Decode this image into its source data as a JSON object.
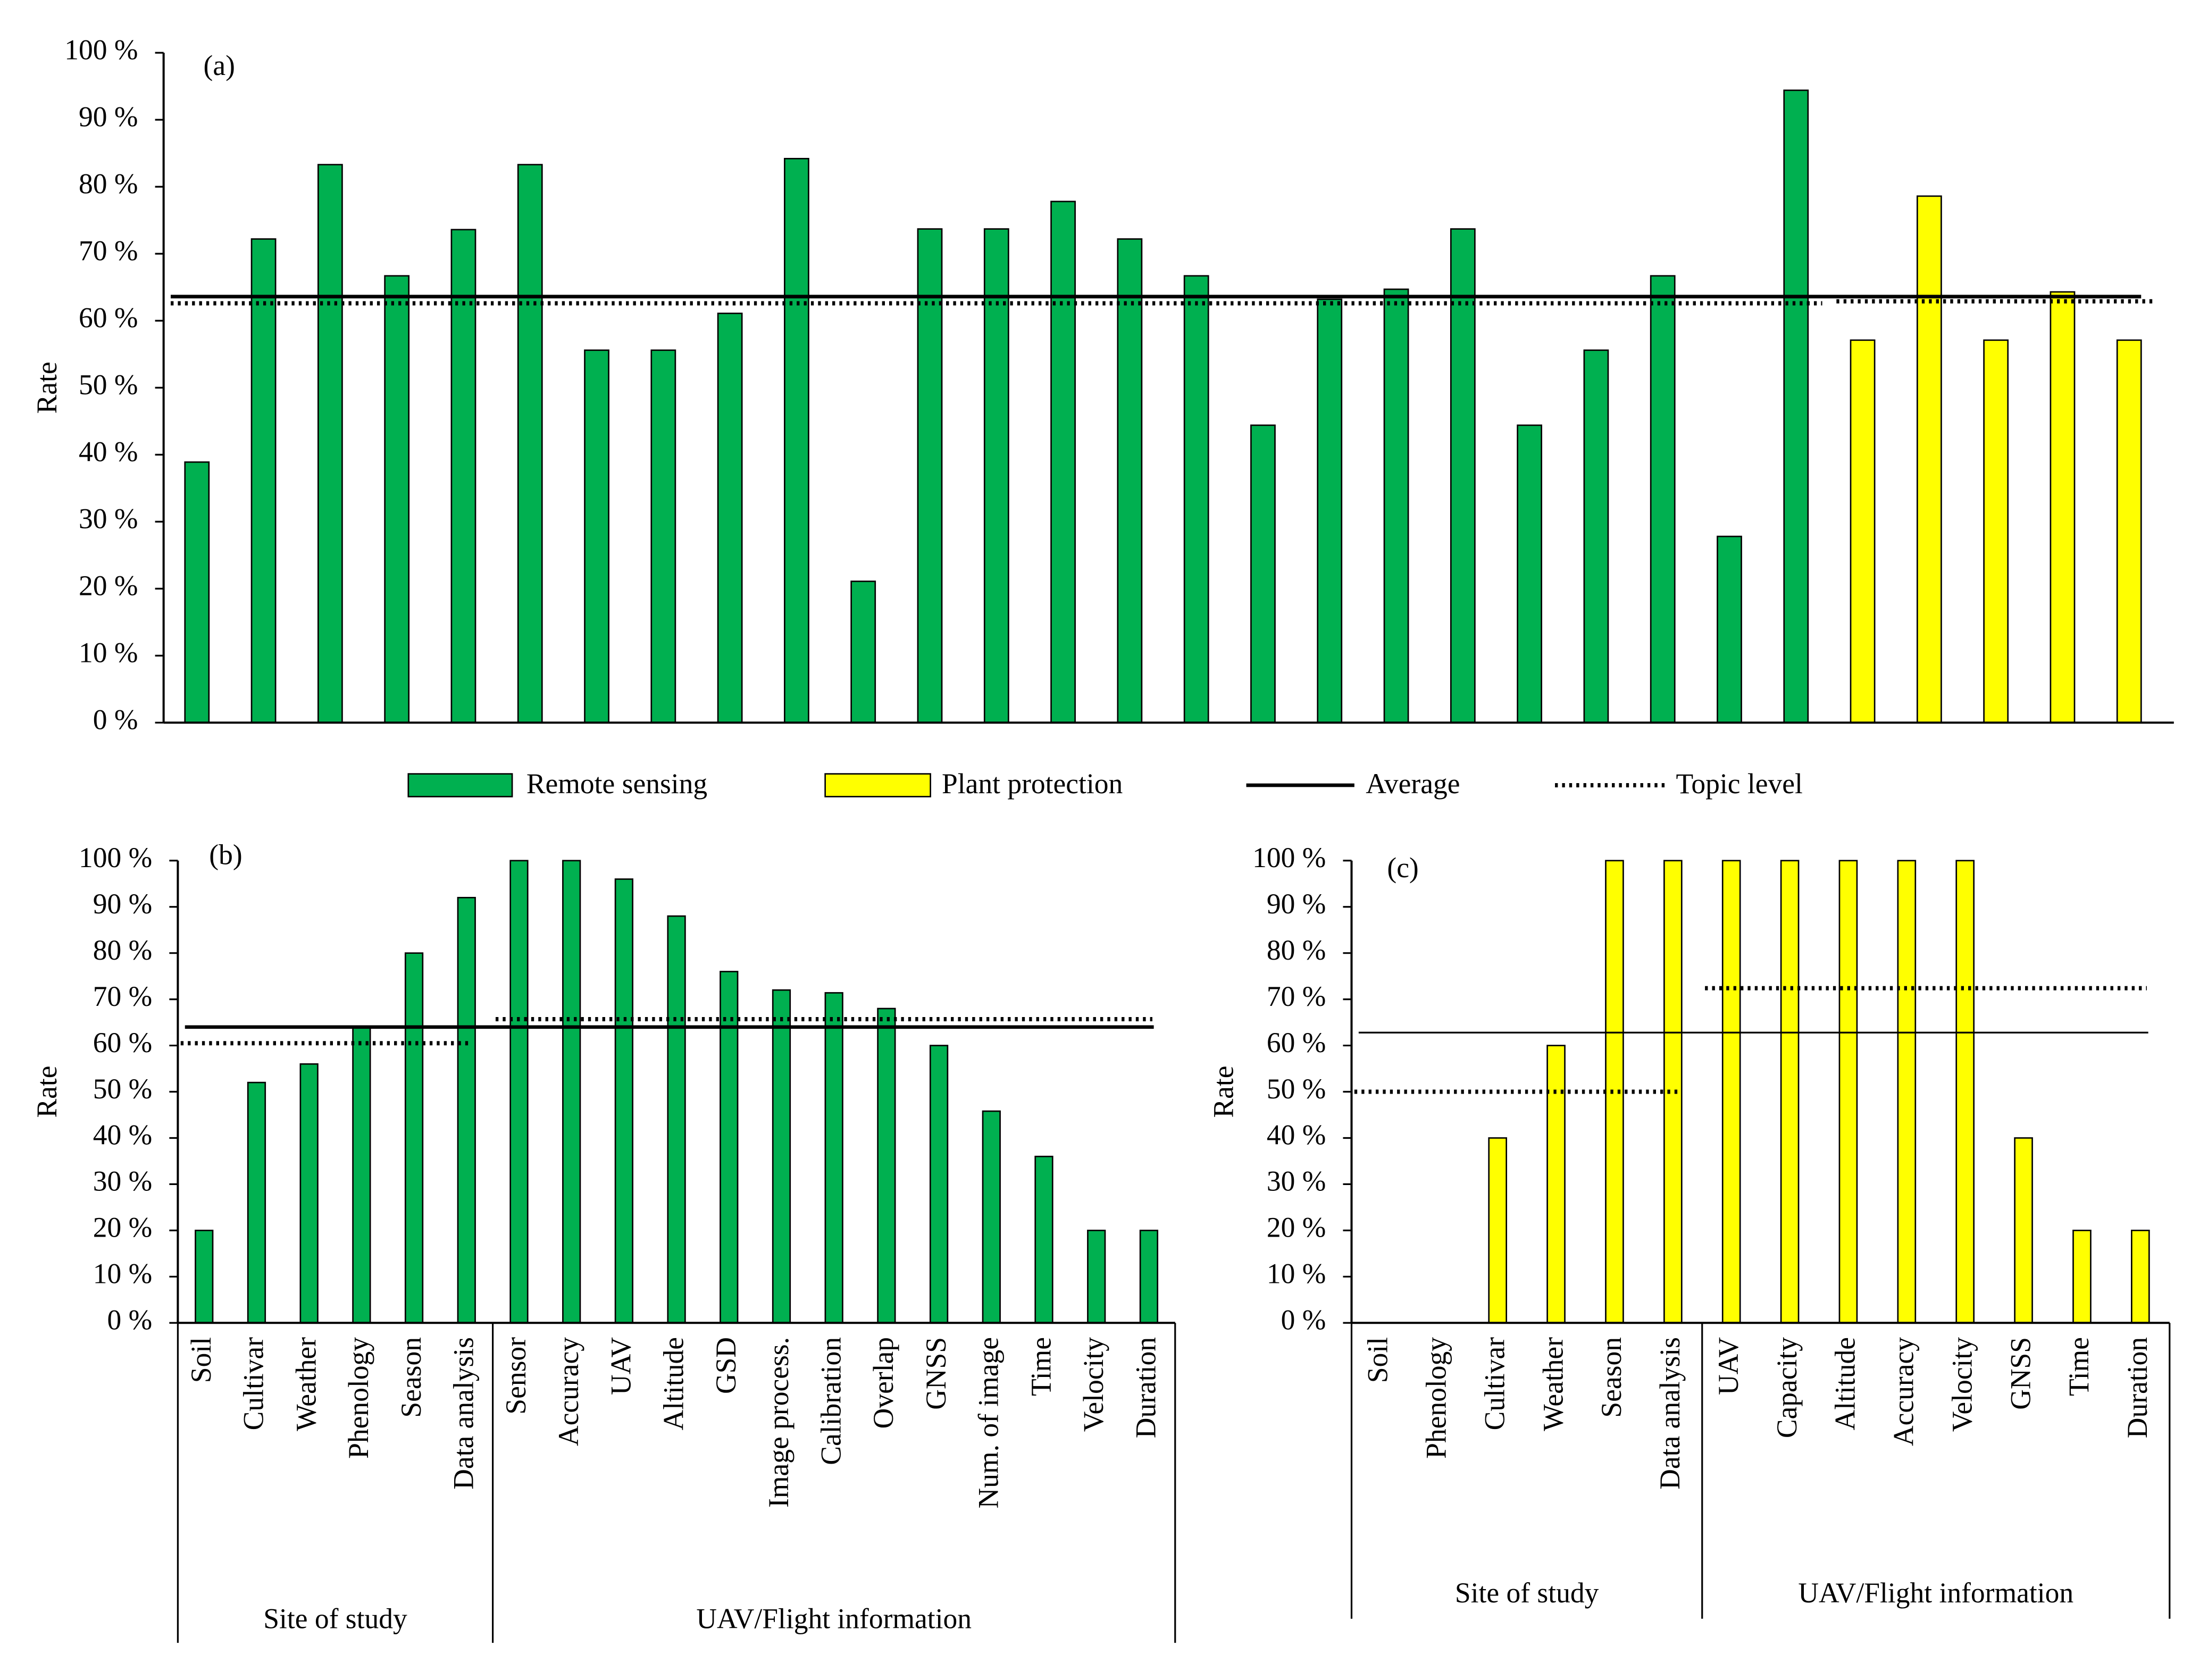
{
  "chart_data": [
    {
      "type": "bar",
      "label": "(a)",
      "ylabel": "Rate",
      "ylim": [
        0,
        100
      ],
      "yticks": [
        {
          "value": 0,
          "label": "0 %"
        },
        {
          "value": 10,
          "label": "10 %"
        },
        {
          "value": 20,
          "label": "20 %"
        },
        {
          "value": 30,
          "label": "30 %"
        },
        {
          "value": 40,
          "label": "40 %"
        },
        {
          "value": 50,
          "label": "50 %"
        },
        {
          "value": 60,
          "label": "60 %"
        },
        {
          "value": 70,
          "label": "70 %"
        },
        {
          "value": 80,
          "label": "80 %"
        },
        {
          "value": 90,
          "label": "90 %"
        },
        {
          "value": 100,
          "label": "100 %"
        }
      ],
      "average": 63.6,
      "groups": [
        {
          "name": "Remote sensing",
          "color": "#00b050",
          "categories": [
            null,
            null,
            null,
            null,
            null,
            null,
            null,
            null,
            null,
            null,
            null,
            null,
            null,
            null,
            null,
            null,
            null,
            null,
            null,
            null,
            null,
            null,
            null,
            null,
            null
          ],
          "values": [
            38.9,
            72.2,
            83.3,
            66.7,
            73.6,
            83.3,
            55.6,
            55.6,
            61.1,
            84.2,
            21.1,
            73.7,
            73.7,
            77.8,
            72.2,
            66.7,
            44.4,
            63.2,
            64.7,
            73.7,
            44.4,
            55.6,
            66.7,
            27.8,
            94.4
          ],
          "topic_level": 62.6
        },
        {
          "name": "Plant protection",
          "color": "#ffff00",
          "categories": [
            null,
            null,
            null,
            null,
            null
          ],
          "values": [
            57.1,
            78.6,
            57.1,
            64.3,
            57.1
          ],
          "topic_level": 62.9
        }
      ]
    },
    {
      "type": "bar",
      "label": "(b)",
      "ylabel": "Rate",
      "ylim": [
        0,
        100
      ],
      "yticks": [
        {
          "value": 0,
          "label": "0 %"
        },
        {
          "value": 10,
          "label": "10 %"
        },
        {
          "value": 20,
          "label": "20 %"
        },
        {
          "value": 30,
          "label": "30 %"
        },
        {
          "value": 40,
          "label": "40 %"
        },
        {
          "value": 50,
          "label": "50 %"
        },
        {
          "value": 60,
          "label": "60 %"
        },
        {
          "value": 70,
          "label": "70 %"
        },
        {
          "value": 80,
          "label": "80 %"
        },
        {
          "value": 90,
          "label": "90 %"
        },
        {
          "value": 100,
          "label": "100 %"
        }
      ],
      "average": 64,
      "groups": [
        {
          "label": "Site of study",
          "color": "#00b050",
          "categories": [
            "Soil",
            "Cultivar",
            "Weather",
            "Phenology",
            "Season",
            "Data analysis"
          ],
          "values": [
            20,
            52,
            56,
            64,
            80,
            92
          ],
          "topic_level": 60.5
        },
        {
          "label": "UAV/Flight information",
          "color": "#00b050",
          "categories": [
            "Sensor",
            "Accuracy",
            "UAV",
            "Altitude",
            "GSD",
            "Image process.",
            "Calibration",
            "Overlap",
            "GNSS",
            "Num. of image",
            "Time",
            "Velocity",
            "Duration"
          ],
          "values": [
            100,
            100,
            96,
            88,
            76,
            72,
            71.4,
            68,
            60,
            45.8,
            36,
            20,
            20
          ],
          "topic_level": 65.7
        }
      ]
    },
    {
      "type": "bar",
      "label": "(c)",
      "ylabel": "Rate",
      "ylim": [
        0,
        100
      ],
      "yticks": [
        {
          "value": 0,
          "label": "0 %"
        },
        {
          "value": 10,
          "label": "10 %"
        },
        {
          "value": 20,
          "label": "20 %"
        },
        {
          "value": 30,
          "label": "30 %"
        },
        {
          "value": 40,
          "label": "40 %"
        },
        {
          "value": 50,
          "label": "50 %"
        },
        {
          "value": 60,
          "label": "60 %"
        },
        {
          "value": 70,
          "label": "70 %"
        },
        {
          "value": 80,
          "label": "80 %"
        },
        {
          "value": 90,
          "label": "90 %"
        },
        {
          "value": 100,
          "label": "100 %"
        }
      ],
      "average": 62.8,
      "groups": [
        {
          "label": "Site of study",
          "color": "#ffff00",
          "categories": [
            "Soil",
            "Phenology",
            "Cultivar",
            "Weather",
            "Season",
            "Data analysis"
          ],
          "values": [
            0,
            0,
            40,
            60,
            100,
            100
          ],
          "topic_level": 50
        },
        {
          "label": "UAV/Flight information",
          "color": "#ffff00",
          "categories": [
            "UAV",
            "Capacity",
            "Altitude",
            "Accuracy",
            "Velocity",
            "GNSS",
            "Time",
            "Duration"
          ],
          "values": [
            100,
            100,
            100,
            100,
            100,
            40,
            20,
            20
          ],
          "topic_level": 72.4
        }
      ]
    }
  ],
  "legend": {
    "average": "Average",
    "topic_level": "Topic level"
  }
}
